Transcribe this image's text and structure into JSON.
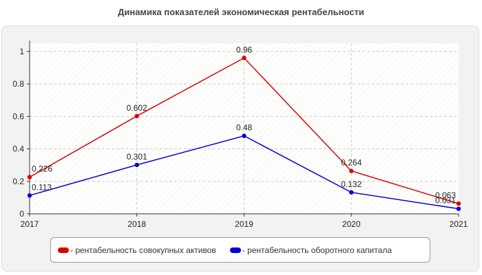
{
  "chart_data": {
    "type": "line",
    "title": "Динамика показателей экономическая рентабельности",
    "xlabel": "",
    "ylabel": "",
    "categories": [
      "2017",
      "2018",
      "2019",
      "2020",
      "2021"
    ],
    "ylim": [
      0,
      1.05
    ],
    "yticks": [
      "0",
      "0.2",
      "0.4",
      "0.6",
      "0.8",
      "1"
    ],
    "grid": true,
    "legend_position": "bottom",
    "series": [
      {
        "name": "- рентабельность совокупных активов",
        "color": "#e00000",
        "values": [
          0.226,
          0.602,
          0.96,
          0.264,
          0.063
        ],
        "labels": [
          "0.226",
          "0.602",
          "0.96",
          "0.264",
          "0.063"
        ]
      },
      {
        "name": "- рентабельность оборотного капитала",
        "color": "#0000dd",
        "values": [
          0.113,
          0.301,
          0.48,
          0.132,
          0.031
        ],
        "labels": [
          "0.113",
          "0.301",
          "0.48",
          "0.132",
          "0.031"
        ]
      }
    ]
  }
}
